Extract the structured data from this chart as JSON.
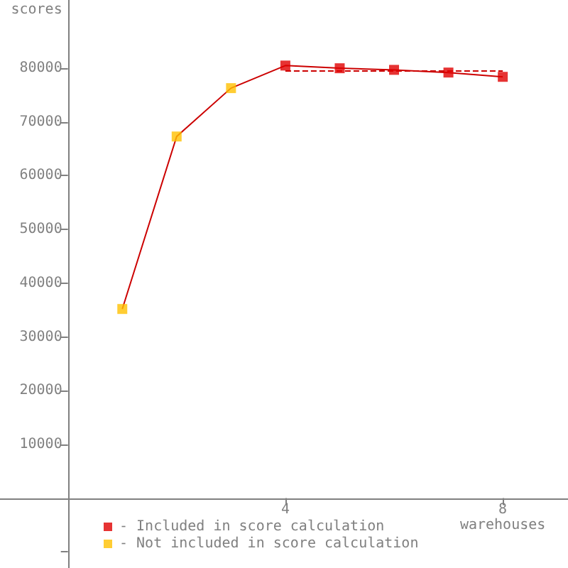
{
  "chart_data": {
    "type": "line",
    "xlabel": "warehouses",
    "ylabel": "scores",
    "xlim": [
      -1.25,
      9.2
    ],
    "xticks": [
      4,
      8
    ],
    "ylim": [
      -13000,
      92700
    ],
    "yticks": [
      {
        "value": -10000,
        "label": null
      },
      {
        "value": 0,
        "label": null
      },
      10000,
      20000,
      30000,
      40000,
      50000,
      60000,
      70000,
      80000
    ],
    "series": [
      {
        "color": "#cc0000",
        "marker": "none",
        "x": [
          1,
          2,
          3,
          4,
          5,
          6,
          7,
          8
        ],
        "values": [
          35200,
          67300,
          76300,
          80500,
          80000,
          79700,
          79200,
          78400
        ]
      },
      {
        "type": "scatter",
        "name": "- Included in score calculation",
        "color": "#e00000",
        "marker": "square",
        "x": [
          4,
          5,
          6,
          7,
          8
        ],
        "values": [
          80500,
          80000,
          79700,
          79200,
          78400
        ]
      },
      {
        "type": "scatter",
        "name": "- Not included in score calculation",
        "color": "#ffc000",
        "marker": "square",
        "x": [
          1,
          2,
          3
        ],
        "values": [
          35200,
          67300,
          76300
        ]
      },
      {
        "color": "#cc0000",
        "marker": "none",
        "line_style": "dashed",
        "x": [
          4,
          8
        ],
        "values": [
          79500,
          79500
        ]
      }
    ],
    "legend": "bottom left"
  }
}
